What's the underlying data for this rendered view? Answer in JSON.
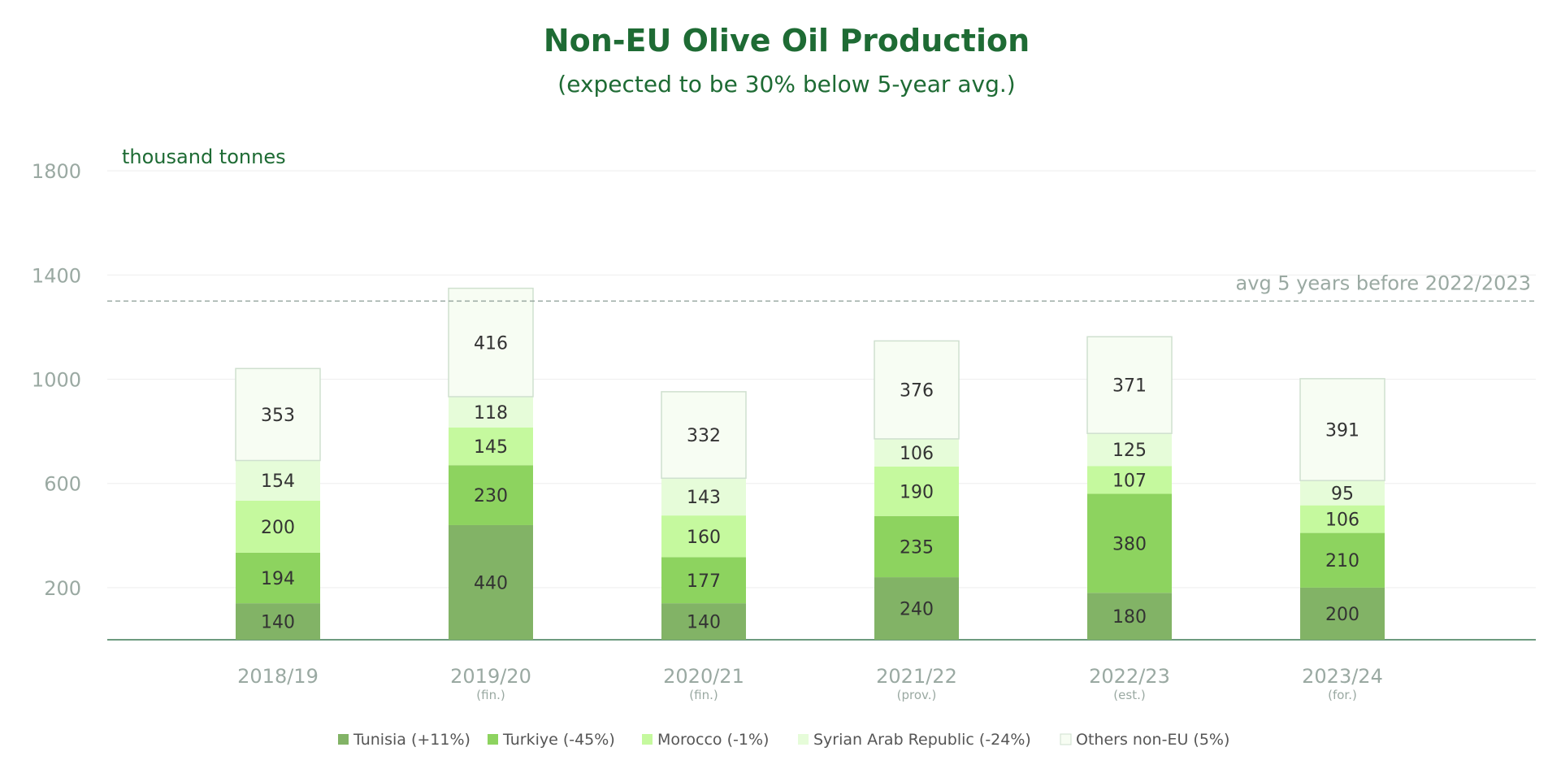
{
  "chart_data": {
    "type": "bar",
    "stacked": true,
    "title": "Non-EU Olive Oil Production",
    "subtitle": "(expected to be 30% below 5-year avg.)",
    "ylabel": "thousand tonnes",
    "ylim": [
      0,
      1800
    ],
    "yticks": [
      200,
      600,
      1000,
      1400,
      1800
    ],
    "grid": true,
    "legend_position": "bottom",
    "categories": [
      "2018/19",
      "2019/20",
      "2020/21",
      "2021/22",
      "2022/23",
      "2023/24"
    ],
    "category_notes": [
      "",
      "(fin.)",
      "(fin.)",
      "(prov.)",
      "(est.)",
      "(for.)"
    ],
    "series": [
      {
        "name": "Tunisia (+11%)",
        "color": "#82b366",
        "values": [
          140,
          440,
          140,
          240,
          180,
          200
        ]
      },
      {
        "name": "Turkiye (-45%)",
        "color": "#8dd35f",
        "values": [
          194,
          230,
          177,
          235,
          380,
          210
        ]
      },
      {
        "name": "Morocco (-1%)",
        "color": "#c5f99e",
        "values": [
          200,
          145,
          160,
          190,
          107,
          106
        ]
      },
      {
        "name": "Syrian Arab Republic (-24%)",
        "color": "#e6fcd9",
        "values": [
          154,
          118,
          143,
          106,
          125,
          95
        ]
      },
      {
        "name": "Others non-EU (5%)",
        "color": "#f7fdf3",
        "values": [
          353,
          416,
          332,
          376,
          371,
          391
        ]
      }
    ],
    "annotations": [
      {
        "text": "avg 5 years before 2022/2023",
        "y": 1300,
        "style": "dashed-line"
      }
    ]
  },
  "colors": {
    "title": "#1e6b34",
    "axis_text": "#9aa9a2",
    "value_text": "#333333",
    "grid": "#eeeeee",
    "baseline": "#3d7a55",
    "avg_line": "#9aa9a2",
    "others_border": "#cfe0cf"
  }
}
